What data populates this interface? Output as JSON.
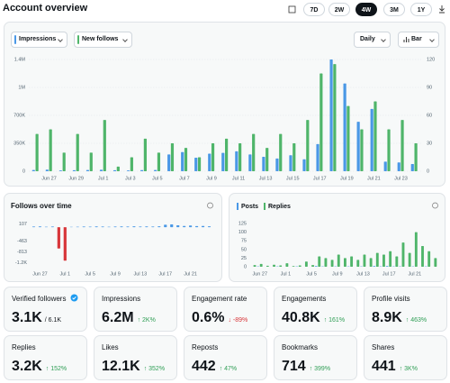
{
  "header": {
    "title": "Account overview",
    "ranges": [
      {
        "label": "7D"
      },
      {
        "label": "2W"
      },
      {
        "label": "4W",
        "selected": true
      },
      {
        "label": "3M"
      },
      {
        "label": "1Y"
      }
    ]
  },
  "controls": {
    "interval": "Daily",
    "chart_style": "Bar"
  },
  "chart_data": [
    {
      "type": "bar",
      "grid": true,
      "categories": [
        null,
        "Jun 27",
        null,
        "Jun 29",
        null,
        "Jul 1",
        null,
        "Jul 3",
        null,
        "Jul 5",
        null,
        "Jul 7",
        null,
        "Jul 9",
        null,
        "Jul 11",
        null,
        "Jul 13",
        null,
        "Jul 15",
        null,
        "Jul 17",
        null,
        "Jul 19",
        null,
        "Jul 21",
        null,
        "Jul 23",
        null
      ],
      "series": [
        {
          "name": "Impressions",
          "color": "#4a98e6",
          "values": [
            15000,
            20000,
            10000,
            12000,
            15000,
            18000,
            12000,
            10000,
            14000,
            15000,
            210000,
            240000,
            170000,
            220000,
            230000,
            250000,
            210000,
            180000,
            160000,
            200000,
            150000,
            340000,
            1400000,
            1100000,
            620000,
            780000,
            120000,
            110000,
            90000
          ]
        },
        {
          "name": "New follows",
          "color": "#4fb56a",
          "axis": "y2",
          "values": [
            40,
            45,
            20,
            40,
            20,
            55,
            5,
            15,
            35,
            20,
            30,
            25,
            15,
            30,
            35,
            30,
            40,
            25,
            40,
            30,
            55,
            105,
            115,
            70,
            45,
            75,
            45,
            55,
            30
          ]
        }
      ],
      "ylim": [
        0,
        1400000
      ],
      "yticks": [
        0,
        {
          "value": 350000,
          "label": "350K"
        },
        {
          "value": 700000,
          "label": "700K"
        },
        {
          "value": 1050000,
          "label": "1M"
        },
        {
          "value": 1400000,
          "label": "1.4M"
        }
      ],
      "y2lim": [
        0,
        120
      ],
      "y2ticks": [
        0,
        30,
        60,
        90,
        120
      ]
    },
    {
      "type": "bar",
      "title": "Follows over time",
      "grid": false,
      "categories": [
        null,
        "Jun 27",
        null,
        null,
        null,
        "Jul 1",
        null,
        null,
        null,
        "Jul 5",
        null,
        null,
        null,
        "Jul 9",
        null,
        null,
        null,
        "Jul 13",
        null,
        null,
        null,
        "Jul 17",
        null,
        null,
        null,
        "Jul 21",
        null,
        null,
        null
      ],
      "values": [
        20,
        25,
        15,
        20,
        -700,
        -1100,
        10,
        15,
        20,
        18,
        25,
        22,
        15,
        20,
        25,
        22,
        28,
        20,
        25,
        22,
        30,
        80,
        90,
        60,
        40,
        55,
        35,
        40,
        30
      ],
      "color": "#4a98e6",
      "negative_color": "#d8363a",
      "ylim": [
        -1300,
        180
      ],
      "yticks": [
        107,
        -463,
        -813,
        {
          "value": -1163,
          "label": "-1.2K"
        }
      ]
    },
    {
      "type": "bar",
      "grid": false,
      "categories": [
        null,
        "Jun 27",
        null,
        null,
        null,
        "Jul 1",
        null,
        null,
        null,
        "Jul 5",
        null,
        null,
        null,
        "Jul 9",
        null,
        null,
        null,
        "Jul 13",
        null,
        null,
        null,
        "Jul 17",
        null,
        null,
        null,
        "Jul 21",
        null,
        null,
        null
      ],
      "series": [
        {
          "name": "Posts",
          "color": "#4a98e6",
          "values": [
            0,
            1,
            0,
            0,
            1,
            0,
            0,
            1,
            0,
            0,
            2,
            1,
            0,
            1,
            0,
            1,
            0,
            1,
            0,
            2,
            1,
            2,
            1,
            1,
            0,
            1,
            0,
            1,
            0
          ]
        },
        {
          "name": "Replies",
          "color": "#4fb56a",
          "values": [
            5,
            8,
            3,
            6,
            4,
            10,
            2,
            4,
            15,
            5,
            30,
            25,
            20,
            35,
            25,
            30,
            20,
            35,
            25,
            40,
            35,
            45,
            30,
            70,
            40,
            100,
            60,
            45,
            25
          ]
        }
      ],
      "ylim": [
        0,
        125
      ],
      "yticks": [
        0,
        25,
        50,
        75,
        100,
        125
      ]
    }
  ],
  "stats": [
    {
      "label": "Verified followers",
      "value": "3.1K",
      "total": "/ 6.1K"
    },
    {
      "label": "Impressions",
      "value": "6.2M",
      "change": "↑ 2K%",
      "color": "#2f9e55"
    },
    {
      "label": "Engagement rate",
      "value": "0.6%",
      "change": "↓ -89%",
      "color": "#d8363a"
    },
    {
      "label": "Engagements",
      "value": "40.8K",
      "change": "↑ 161%",
      "color": "#2f9e55"
    },
    {
      "label": "Profile visits",
      "value": "8.9K",
      "change": "↑ 463%",
      "color": "#2f9e55"
    },
    {
      "label": "Replies",
      "value": "3.2K",
      "change": "↑ 152%",
      "color": "#2f9e55"
    },
    {
      "label": "Likes",
      "value": "12.1K",
      "change": "↑ 352%",
      "color": "#2f9e55"
    },
    {
      "label": "Reposts",
      "value": "442",
      "change": "↑ 47%",
      "color": "#2f9e55"
    },
    {
      "label": "Bookmarks",
      "value": "714",
      "change": "↑ 399%",
      "color": "#2f9e55"
    },
    {
      "label": "Shares",
      "value": "441",
      "change": "↑ 3K%",
      "color": "#2f9e55"
    }
  ]
}
